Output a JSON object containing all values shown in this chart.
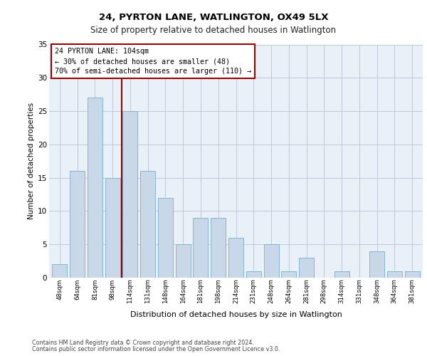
{
  "title1": "24, PYRTON LANE, WATLINGTON, OX49 5LX",
  "title2": "Size of property relative to detached houses in Watlington",
  "xlabel": "Distribution of detached houses by size in Watlington",
  "ylabel": "Number of detached properties",
  "categories": [
    "48sqm",
    "64sqm",
    "81sqm",
    "98sqm",
    "114sqm",
    "131sqm",
    "148sqm",
    "164sqm",
    "181sqm",
    "198sqm",
    "214sqm",
    "231sqm",
    "248sqm",
    "264sqm",
    "281sqm",
    "298sqm",
    "314sqm",
    "331sqm",
    "348sqm",
    "364sqm",
    "381sqm"
  ],
  "values": [
    2,
    16,
    27,
    15,
    25,
    16,
    12,
    5,
    9,
    9,
    6,
    1,
    5,
    1,
    3,
    0,
    1,
    0,
    4,
    1,
    1
  ],
  "bar_color": "#c8d8e8",
  "bar_edge_color": "#7aadcf",
  "grid_color": "#c0c8d8",
  "bg_color": "#e8f0f8",
  "vline_x": 3.5,
  "vline_color": "#990000",
  "annotation_text": "24 PYRTON LANE: 104sqm\n← 30% of detached houses are smaller (48)\n70% of semi-detached houses are larger (110) →",
  "annotation_box_color": "#ffffff",
  "annotation_border_color": "#990000",
  "footer1": "Contains HM Land Registry data © Crown copyright and database right 2024.",
  "footer2": "Contains public sector information licensed under the Open Government Licence v3.0.",
  "ylim": [
    0,
    35
  ],
  "yticks": [
    0,
    5,
    10,
    15,
    20,
    25,
    30,
    35
  ]
}
